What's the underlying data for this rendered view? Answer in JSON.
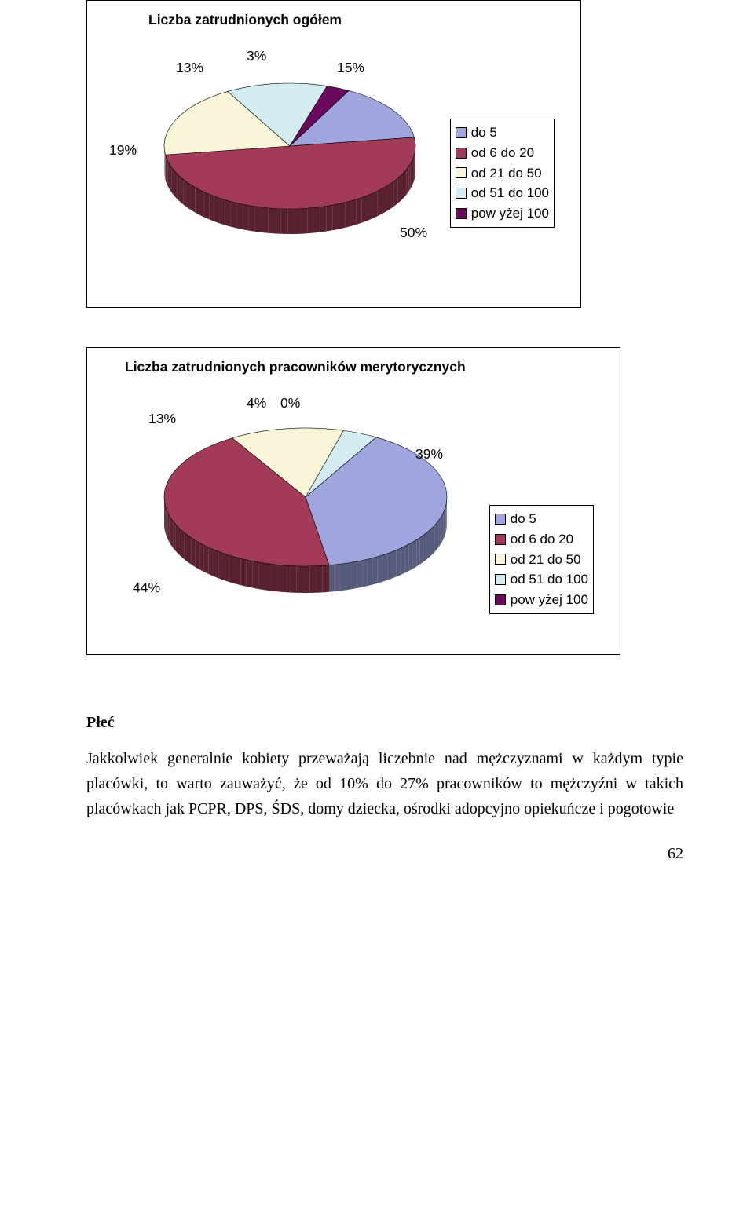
{
  "chart1": {
    "type": "pie-3d",
    "title": "Liczba zatrudnionych ogółem",
    "slices": [
      {
        "label": "do 5",
        "value": 15,
        "color": "#9ea6dd",
        "label_text": "15%"
      },
      {
        "label": "od 6 do 20",
        "value": 50,
        "color": "#a23b58",
        "label_text": "50%"
      },
      {
        "label": "od 21 do 50",
        "value": 19,
        "color": "#f8f5d8",
        "label_text": "19%"
      },
      {
        "label": "od 51 do 100",
        "value": 13,
        "color": "#d3edf2",
        "label_text": "13%"
      },
      {
        "label": "pow yżej 100",
        "value": 3,
        "color": "#6a0a5d",
        "label_text": "3%"
      }
    ],
    "legend_labels": [
      "do 5",
      "od 6 do 20",
      "od 21 do 50",
      "od 51 do 100",
      "pow yżej 100"
    ],
    "legend_colors": [
      "#9ea6dd",
      "#a23b58",
      "#f8f5d8",
      "#d3edf2",
      "#6a0a5d"
    ],
    "label_fontsize": 18,
    "title_fontsize": 18,
    "background": "#ffffff",
    "border_color": "#000000"
  },
  "chart2": {
    "type": "pie-3d",
    "title": "Liczba zatrudnionych pracowników merytorycznych",
    "slices": [
      {
        "label": "do 5",
        "value": 39,
        "color": "#9ea6dd",
        "label_text": "39%"
      },
      {
        "label": "od 6 do 20",
        "value": 44,
        "color": "#a23b58",
        "label_text": "44%"
      },
      {
        "label": "od 21 do 50",
        "value": 13,
        "color": "#f8f5d8",
        "label_text": "13%"
      },
      {
        "label": "od 51 do 100",
        "value": 4,
        "color": "#d3edf2",
        "label_text": "4%"
      },
      {
        "label": "pow yżej 100",
        "value": 0,
        "color": "#6a0a5d",
        "label_text": "0%"
      }
    ],
    "legend_labels": [
      "do 5",
      "od 6 do 20",
      "od 21 do 50",
      "od 51 do 100",
      "pow yżej 100"
    ],
    "legend_colors": [
      "#9ea6dd",
      "#a23b58",
      "#f8f5d8",
      "#d3edf2",
      "#6a0a5d"
    ],
    "label_fontsize": 18,
    "title_fontsize": 18,
    "background": "#ffffff",
    "border_color": "#000000"
  },
  "text": {
    "heading": "Płeć",
    "paragraph": "Jakkolwiek generalnie kobiety przeważają liczebnie nad mężczyznami w każdym typie placówki, to warto zauważyć, że od 10% do 27% pracowników to mężczyźni w takich placówkach jak PCPR, DPS, ŚDS, domy dziecka, ośrodki adopcyjno opiekuńcze i pogotowie"
  },
  "page_number": "62"
}
